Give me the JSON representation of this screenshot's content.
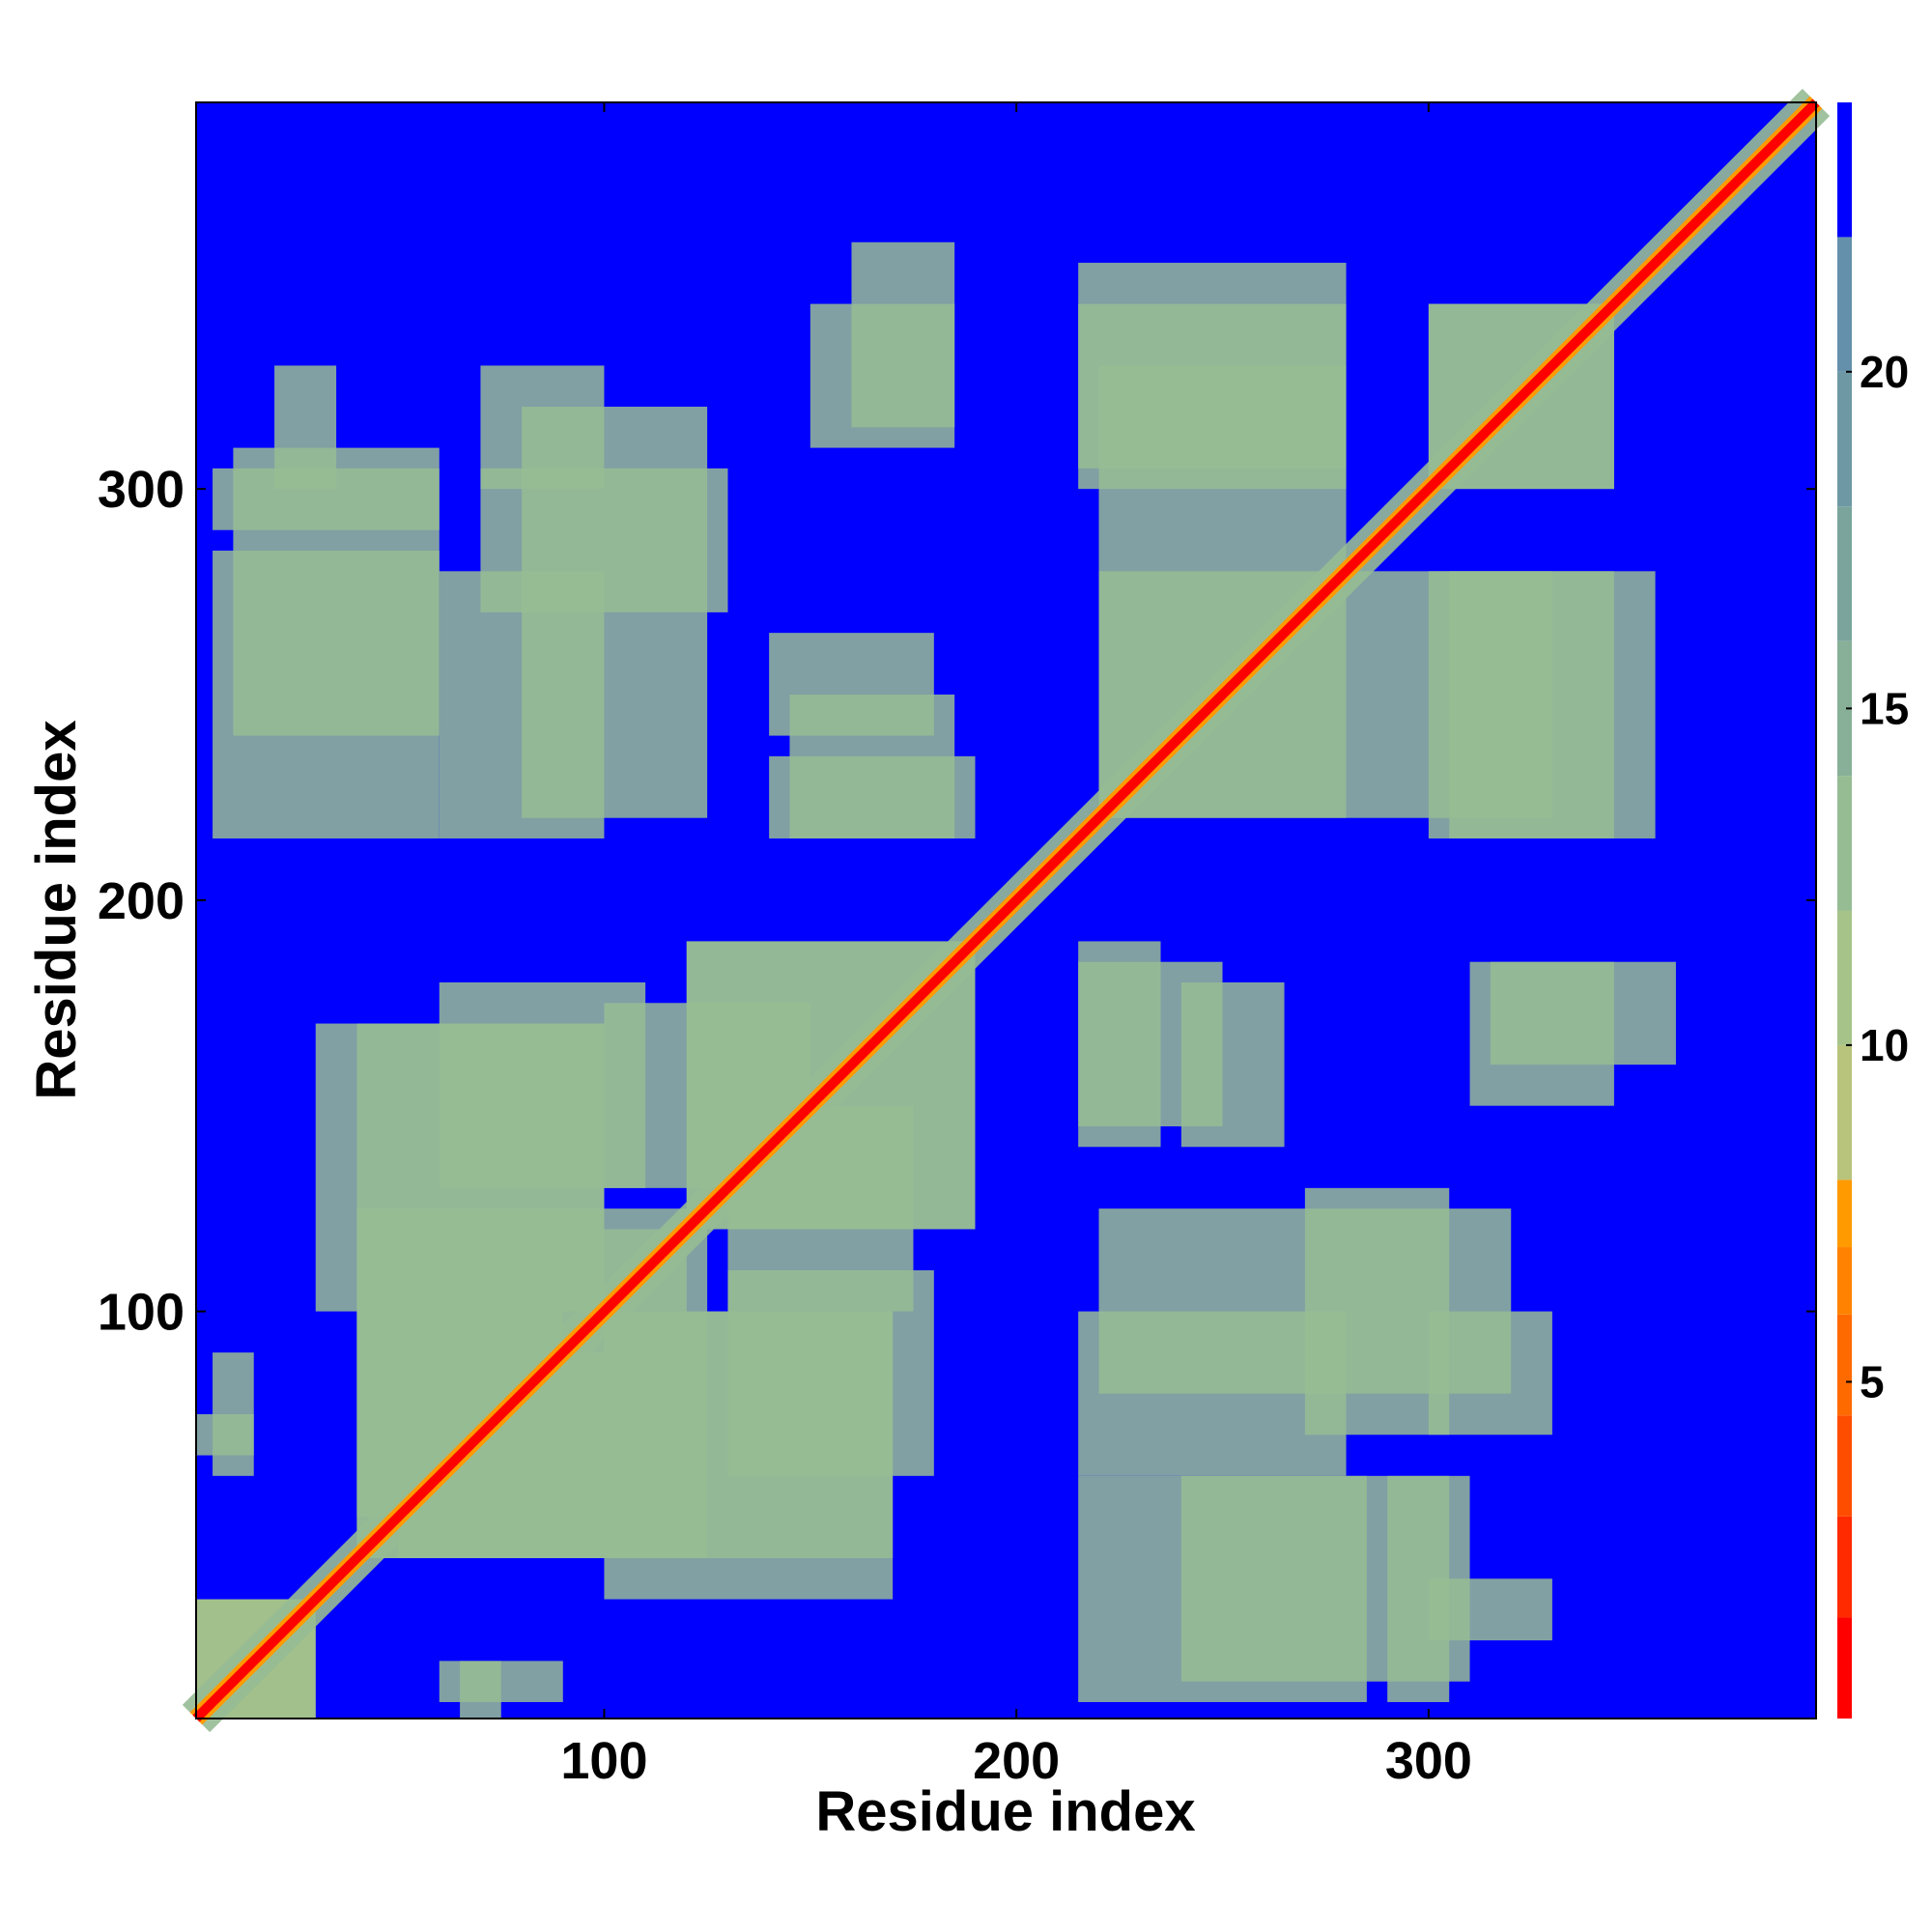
{
  "chart_data": {
    "type": "heatmap",
    "title": "",
    "xlabel": "Residue index",
    "ylabel": "Residue index",
    "xlim": [
      1,
      394
    ],
    "ylim": [
      1,
      394
    ],
    "xticks": [
      100,
      200,
      300
    ],
    "yticks": [
      100,
      200,
      300
    ],
    "colorbar": {
      "ticks": [
        5,
        10,
        15,
        20
      ],
      "range": [
        0,
        24
      ],
      "levels": [
        {
          "from": 0,
          "to": 1.5,
          "color": "#ff0000"
        },
        {
          "from": 1.5,
          "to": 3,
          "color": "#ff2a00"
        },
        {
          "from": 3,
          "to": 4.5,
          "color": "#ff4d00"
        },
        {
          "from": 4.5,
          "to": 6,
          "color": "#ff6a00"
        },
        {
          "from": 6,
          "to": 7,
          "color": "#ff8200"
        },
        {
          "from": 7,
          "to": 8,
          "color": "#ff9a00"
        },
        {
          "from": 8,
          "to": 10,
          "color": "#b8c47c"
        },
        {
          "from": 10,
          "to": 12,
          "color": "#a6c48a"
        },
        {
          "from": 12,
          "to": 14,
          "color": "#96bc94"
        },
        {
          "from": 14,
          "to": 16,
          "color": "#88b098"
        },
        {
          "from": 16,
          "to": 18,
          "color": "#7aa49c"
        },
        {
          "from": 18,
          "to": 20,
          "color": "#6e98a4"
        },
        {
          "from": 20,
          "to": 22,
          "color": "#6490ac"
        },
        {
          "from": 22,
          "to": 24,
          "color": "#0000ff"
        }
      ]
    },
    "background_color": "#0000ff",
    "diagonal_color": "#ff0000",
    "contact_color": "#a6c48a",
    "regions": [
      {
        "x": [
          1,
          30
        ],
        "y": [
          1,
          30
        ],
        "v": 10
      },
      {
        "x": [
          40,
          120
        ],
        "y": [
          40,
          125
        ],
        "v": 12
      },
      {
        "x": [
          120,
          190
        ],
        "y": [
          120,
          190
        ],
        "v": 12
      },
      {
        "x": [
          50,
          110
        ],
        "y": [
          40,
          90
        ],
        "v": 12
      },
      {
        "x": [
          100,
          170
        ],
        "y": [
          30,
          100
        ],
        "v": 12
      },
      {
        "x": [
          130,
          180
        ],
        "y": [
          60,
          110
        ],
        "v": 12
      },
      {
        "x": [
          40,
          100
        ],
        "y": [
          110,
          170
        ],
        "v": 12
      },
      {
        "x": [
          100,
          150
        ],
        "y": [
          130,
          175
        ],
        "v": 12
      },
      {
        "x": [
          5,
          60
        ],
        "y": [
          215,
          285
        ],
        "v": 12
      },
      {
        "x": [
          60,
          100
        ],
        "y": [
          215,
          280
        ],
        "v": 12
      },
      {
        "x": [
          5,
          60
        ],
        "y": [
          290,
          305
        ],
        "v": 12
      },
      {
        "x": [
          70,
          130
        ],
        "y": [
          270,
          305
        ],
        "v": 12
      },
      {
        "x": [
          70,
          100
        ],
        "y": [
          300,
          330
        ],
        "v": 12
      },
      {
        "x": [
          140,
          190
        ],
        "y": [
          215,
          235
        ],
        "v": 12
      },
      {
        "x": [
          140,
          180
        ],
        "y": [
          240,
          265
        ],
        "v": 12
      },
      {
        "x": [
          150,
          185
        ],
        "y": [
          310,
          345
        ],
        "v": 12
      },
      {
        "x": [
          220,
          330
        ],
        "y": [
          220,
          280
        ],
        "v": 12
      },
      {
        "x": [
          215,
          280
        ],
        "y": [
          305,
          345
        ],
        "v": 12
      },
      {
        "x": [
          300,
          345
        ],
        "y": [
          300,
          345
        ],
        "v": 12
      },
      {
        "x": [
          300,
          355
        ],
        "y": [
          215,
          280
        ],
        "v": 12
      },
      {
        "x": [
          215,
          250
        ],
        "y": [
          145,
          185
        ],
        "v": 12
      },
      {
        "x": [
          315,
          360
        ],
        "y": [
          160,
          185
        ],
        "v": 12
      },
      {
        "x": [
          220,
          320
        ],
        "y": [
          80,
          125
        ],
        "v": 12
      },
      {
        "x": [
          240,
          310
        ],
        "y": [
          10,
          60
        ],
        "v": 12
      },
      {
        "x": [
          300,
          330
        ],
        "y": [
          20,
          35
        ],
        "v": 12
      },
      {
        "x": [
          1,
          15
        ],
        "y": [
          65,
          75
        ],
        "v": 12
      },
      {
        "x": [
          60,
          90
        ],
        "y": [
          5,
          15
        ],
        "v": 12
      }
    ]
  }
}
